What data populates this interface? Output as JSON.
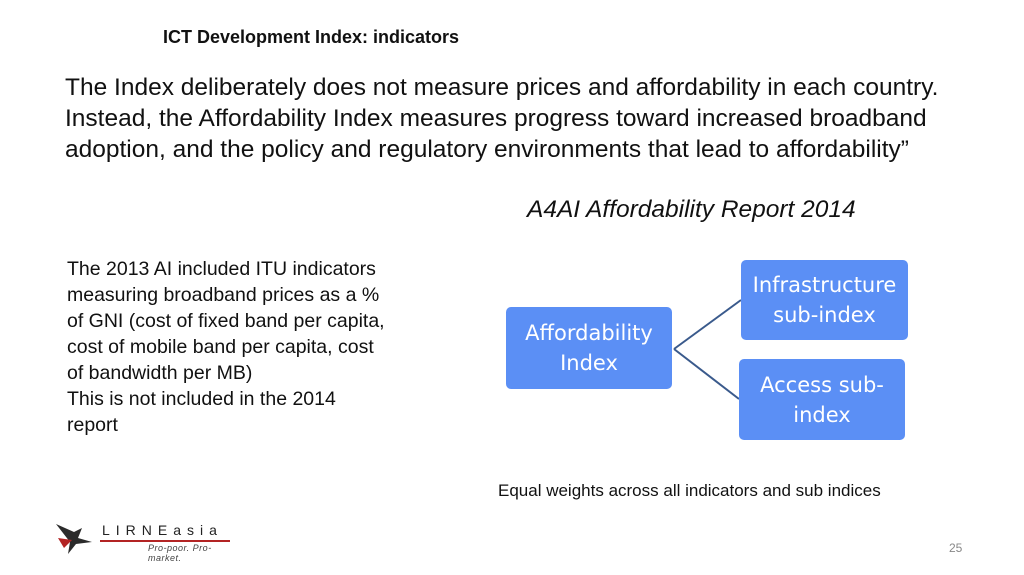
{
  "slide": {
    "title": "ICT Development Index: indicators",
    "quote": "The Index deliberately does not measure prices and affordability in each country. Instead, the Affordability Index measures progress toward increased broadband adoption, and the policy and regulatory environments that lead to affordability”",
    "source": "A4AI Affordability Report 2014",
    "side_text": [
      "The 2013 AI included ITU indicators measuring broadband prices as a % of GNI (cost of fixed band per capita, cost of mobile band per capita, cost of bandwidth per MB)",
      "This is not included in the 2014 report"
    ],
    "footnote": "Equal weights across all indicators and sub indices",
    "page_number": "25"
  },
  "diagram": {
    "root": {
      "line1": "Affordability",
      "line2": "Index"
    },
    "children": [
      {
        "line1": "Infrastructure",
        "line2": "sub-index"
      },
      {
        "line1": "Access sub-",
        "line2": "index"
      }
    ],
    "box_color": "#5b8ff5",
    "connector_color": "#3a5a8c"
  },
  "logo": {
    "name": "LIRNEasia",
    "tagline": "Pro-poor. Pro-market."
  }
}
